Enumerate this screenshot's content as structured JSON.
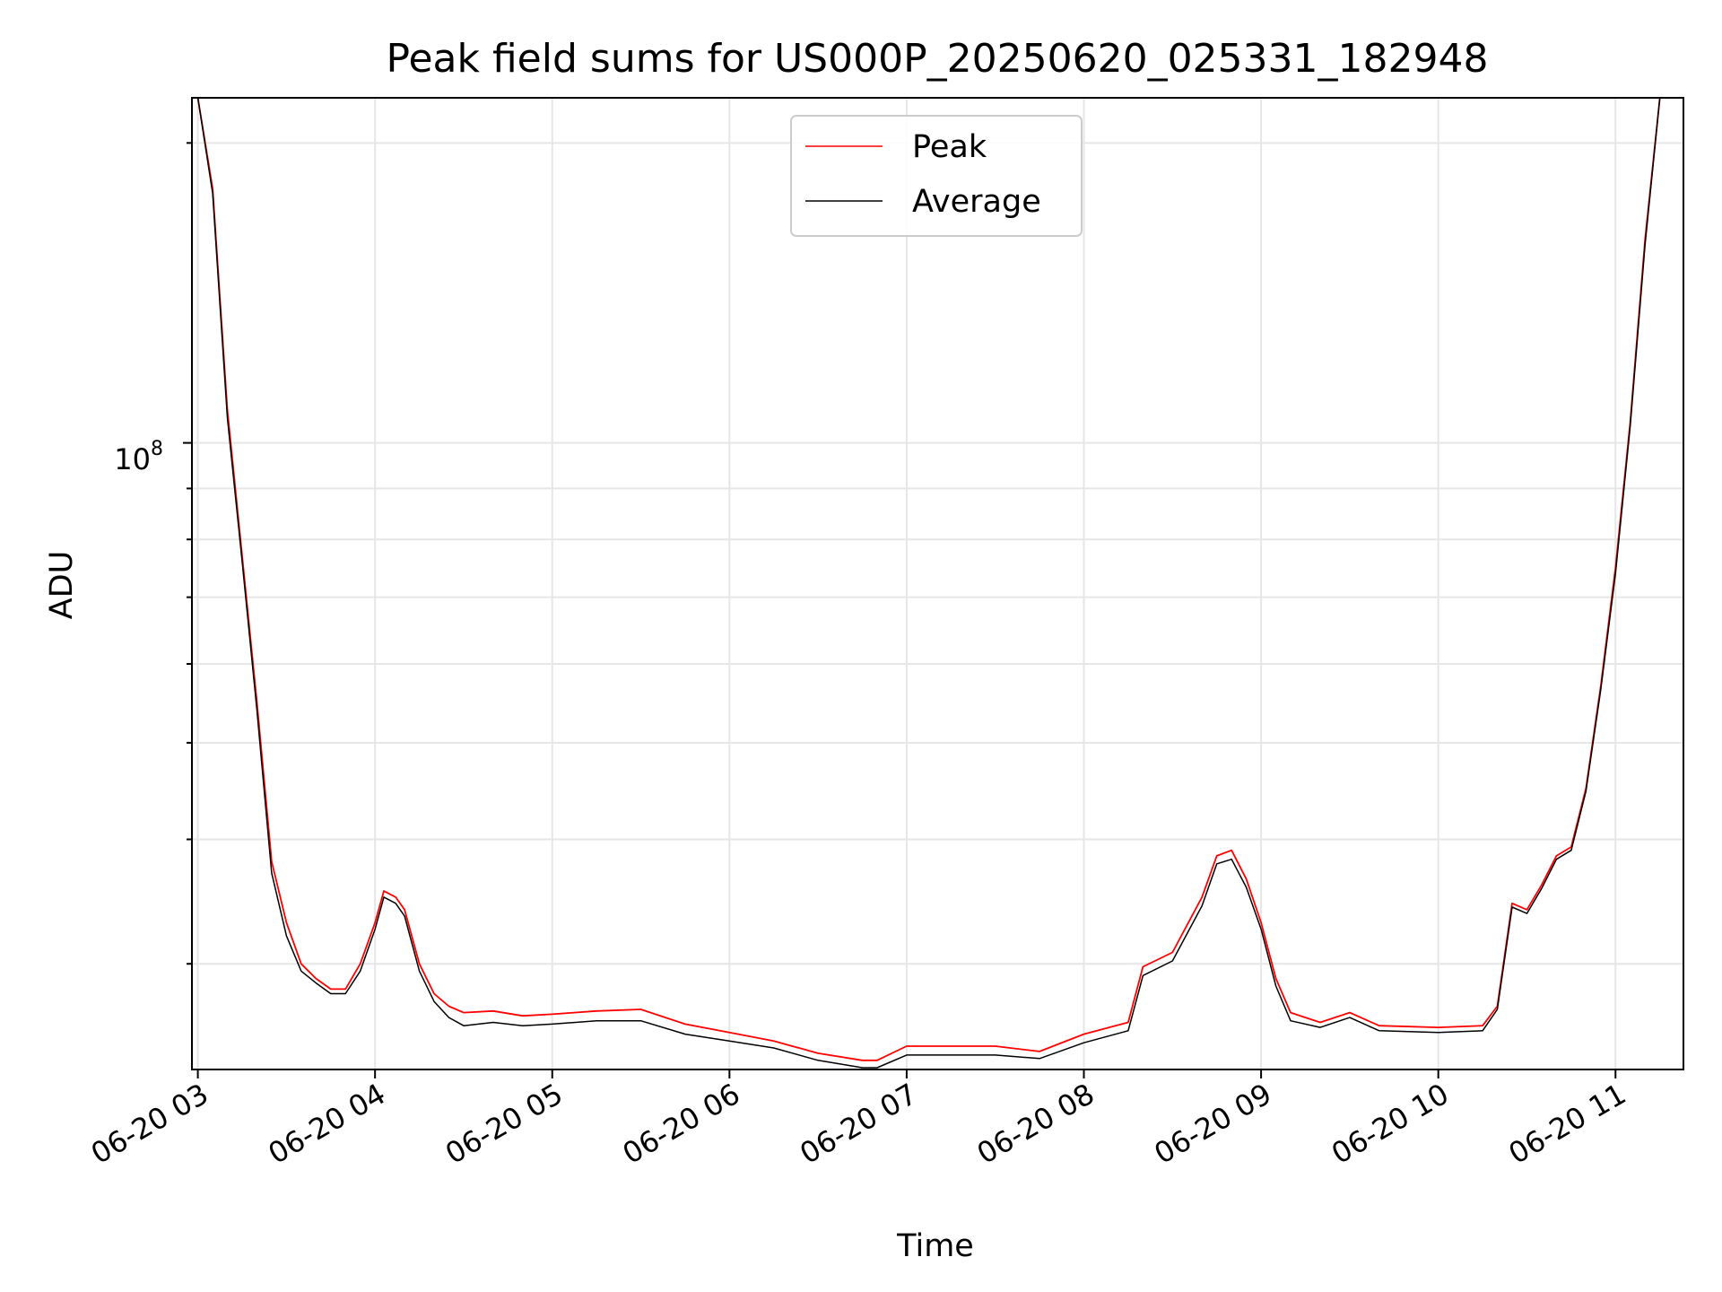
{
  "chart_data": {
    "type": "line",
    "title": "Peak field sums for US000P_20250620_025331_182948",
    "xlabel": "Time",
    "ylabel": "ADU",
    "y_scale": "log",
    "ylim": [
      23500000,
      222000000
    ],
    "xlim": [
      "06-20 02:58",
      "06-20 11:23"
    ],
    "x_ticks": [
      "06-20 03",
      "06-20 04",
      "06-20 05",
      "06-20 06",
      "06-20 07",
      "06-20 08",
      "06-20 09",
      "06-20 10",
      "06-20 11"
    ],
    "y_major_tick": {
      "value": 100000000,
      "base": "10",
      "exponent": "8"
    },
    "grid": true,
    "legend": {
      "position": "upper center"
    },
    "colors": {
      "peak": "#ff0000",
      "average": "#000000"
    },
    "series": [
      {
        "name": "Peak",
        "x": [
          "03:00",
          "03:05",
          "03:10",
          "03:15",
          "03:20",
          "03:25",
          "03:30",
          "03:35",
          "03:40",
          "03:45",
          "03:50",
          "03:55",
          "04:00",
          "04:03",
          "04:07",
          "04:10",
          "04:15",
          "04:20",
          "04:25",
          "04:30",
          "04:40",
          "04:50",
          "05:00",
          "05:15",
          "05:30",
          "05:45",
          "06:00",
          "06:15",
          "06:30",
          "06:45",
          "06:50",
          "07:00",
          "07:15",
          "07:30",
          "07:45",
          "08:00",
          "08:15",
          "08:20",
          "08:30",
          "08:40",
          "08:45",
          "08:50",
          "08:55",
          "09:00",
          "09:05",
          "09:10",
          "09:20",
          "09:30",
          "09:40",
          "10:00",
          "10:15",
          "10:20",
          "10:25",
          "10:30",
          "10:35",
          "10:40",
          "10:45",
          "10:50",
          "10:55",
          "11:00",
          "11:05",
          "11:10",
          "11:15",
          "11:20"
        ],
        "y": [
          222000000,
          180000000,
          108000000,
          77000000,
          55000000,
          38000000,
          33000000,
          30000000,
          29000000,
          28300000,
          28300000,
          30000000,
          33000000,
          35500000,
          35000000,
          34000000,
          30000000,
          28000000,
          27200000,
          26800000,
          26900000,
          26600000,
          26700000,
          26900000,
          27000000,
          26100000,
          25600000,
          25100000,
          24400000,
          24000000,
          24000000,
          24800000,
          24800000,
          24800000,
          24500000,
          25500000,
          26200000,
          29800000,
          30800000,
          35000000,
          38500000,
          39000000,
          36500000,
          33000000,
          29000000,
          26800000,
          26200000,
          26800000,
          26000000,
          25900000,
          26000000,
          27200000,
          34500000,
          34000000,
          36000000,
          38500000,
          39300000,
          45000000,
          57000000,
          75000000,
          105000000,
          160000000,
          222000000,
          222000000
        ]
      },
      {
        "name": "Average",
        "x": [
          "03:00",
          "03:05",
          "03:10",
          "03:15",
          "03:20",
          "03:25",
          "03:30",
          "03:35",
          "03:40",
          "03:45",
          "03:50",
          "03:55",
          "04:00",
          "04:03",
          "04:07",
          "04:10",
          "04:15",
          "04:20",
          "04:25",
          "04:30",
          "04:40",
          "04:50",
          "05:00",
          "05:15",
          "05:30",
          "05:45",
          "06:00",
          "06:15",
          "06:30",
          "06:45",
          "06:50",
          "07:00",
          "07:15",
          "07:30",
          "07:45",
          "08:00",
          "08:15",
          "08:20",
          "08:30",
          "08:40",
          "08:45",
          "08:50",
          "08:55",
          "09:00",
          "09:05",
          "09:10",
          "09:20",
          "09:30",
          "09:40",
          "10:00",
          "10:15",
          "10:20",
          "10:25",
          "10:30",
          "10:35",
          "10:40",
          "10:45",
          "10:50",
          "10:55",
          "11:00",
          "11:05",
          "11:10",
          "11:15",
          "11:20"
        ],
        "y": [
          222000000,
          178000000,
          106000000,
          76000000,
          54000000,
          37000000,
          32000000,
          29500000,
          28700000,
          28000000,
          28000000,
          29500000,
          32500000,
          35000000,
          34500000,
          33500000,
          29500000,
          27500000,
          26500000,
          26000000,
          26200000,
          26000000,
          26100000,
          26300000,
          26300000,
          25500000,
          25100000,
          24700000,
          24000000,
          23600000,
          23600000,
          24300000,
          24300000,
          24300000,
          24100000,
          25000000,
          25700000,
          29200000,
          30200000,
          34300000,
          37800000,
          38200000,
          35800000,
          32500000,
          28500000,
          26300000,
          25900000,
          26500000,
          25700000,
          25600000,
          25700000,
          27000000,
          34200000,
          33700000,
          35700000,
          38200000,
          39000000,
          44700000,
          56500000,
          74000000,
          104000000,
          158000000,
          222000000,
          222000000
        ]
      }
    ]
  }
}
